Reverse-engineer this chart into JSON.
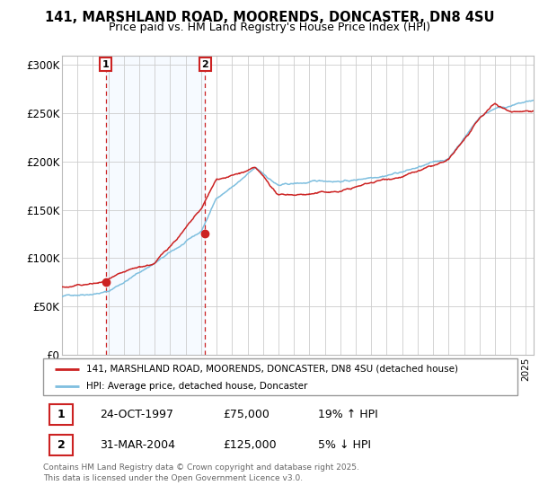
{
  "title_line1": "141, MARSHLAND ROAD, MOORENDS, DONCASTER, DN8 4SU",
  "title_line2": "Price paid vs. HM Land Registry's House Price Index (HPI)",
  "ylabel_ticks": [
    "£0",
    "£50K",
    "£100K",
    "£150K",
    "£200K",
    "£250K",
    "£300K"
  ],
  "ytick_vals": [
    0,
    50000,
    100000,
    150000,
    200000,
    250000,
    300000
  ],
  "ylim": [
    0,
    310000
  ],
  "xlim_start": 1995.0,
  "xlim_end": 2025.5,
  "sale1_date": 1997.82,
  "sale1_price": 75000,
  "sale2_date": 2004.25,
  "sale2_price": 125000,
  "hpi_color": "#7fbfdf",
  "price_color": "#cc2222",
  "shade_color": "#ddeeff",
  "annotation_box_color": "#cc2222",
  "grid_color": "#cccccc",
  "legend_entry1": "141, MARSHLAND ROAD, MOORENDS, DONCASTER, DN8 4SU (detached house)",
  "legend_entry2": "HPI: Average price, detached house, Doncaster",
  "table_row1": [
    "1",
    "24-OCT-1997",
    "£75,000",
    "19% ↑ HPI"
  ],
  "table_row2": [
    "2",
    "31-MAR-2004",
    "£125,000",
    "5% ↓ HPI"
  ],
  "footnote": "Contains HM Land Registry data © Crown copyright and database right 2025.\nThis data is licensed under the Open Government Licence v3.0."
}
